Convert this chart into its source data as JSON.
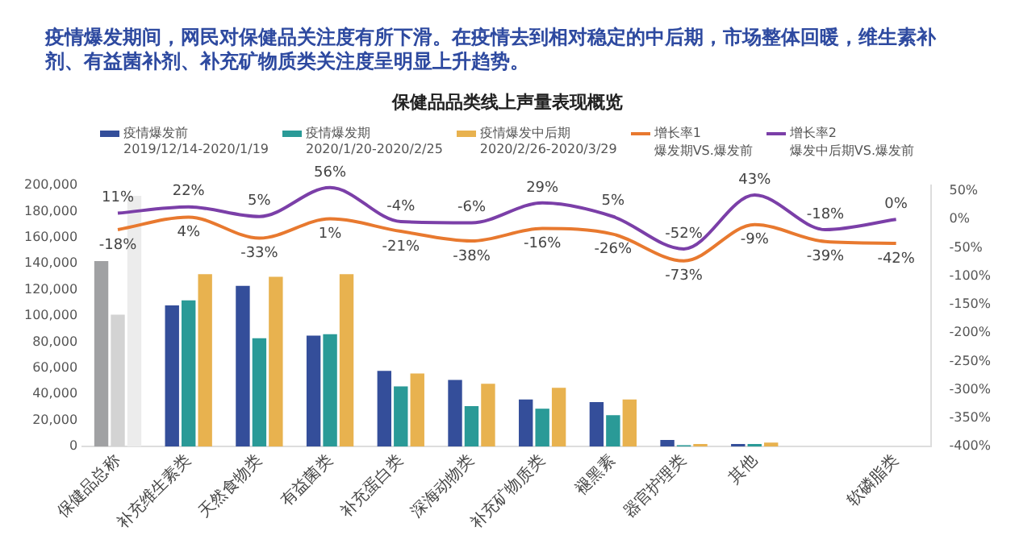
{
  "chart_data": {
    "type": "bar",
    "title": "疫情爆发期间，网民对保健品关注度有所下滑。在疫情去到相对稳定的中后期，市场整体回暖，维生素补剂、有益菌补剂、补充矿物质类关注度呈明显上升趋势。",
    "subtitle": "保健品品类线上声量表现概览",
    "categories": [
      "保健品总称",
      "补充维生素类",
      "天然食物类",
      "有益菌类",
      "补充蛋白类",
      "深海动物类",
      "补充矿物质类",
      "褪黑素",
      "器官护理类",
      "其他",
      null,
      "软磷脂类"
    ],
    "series": [
      {
        "name": "疫情爆发前\n2019/12/14-2020/1/19",
        "color": "#344e9a",
        "colors": [
          "#a0a1a3",
          "#344e9a",
          "#344e9a",
          "#344e9a",
          "#344e9a",
          "#344e9a",
          "#344e9a",
          "#344e9a",
          "#344e9a",
          "#344e9a",
          "#344e9a",
          "#344e9a"
        ],
        "values": [
          142000,
          108000,
          123000,
          85000,
          58000,
          51000,
          36000,
          34000,
          5000,
          2000,
          0,
          0
        ]
      },
      {
        "name": "疫情爆发期\n2020/1/20-2020/2/25",
        "color": "#2a9a97",
        "colors": [
          "#d3d3d3",
          "#2a9a97",
          "#2a9a97",
          "#2a9a97",
          "#2a9a97",
          "#2a9a97",
          "#2a9a97",
          "#2a9a97",
          "#2a9a97",
          "#2a9a97",
          "#2a9a97",
          "#2a9a97"
        ],
        "values": [
          101000,
          112000,
          83000,
          86000,
          46000,
          31000,
          29000,
          24000,
          1000,
          2000,
          0,
          0
        ]
      },
      {
        "name": "疫情爆发中后期\n2020/2/26-2020/3/29",
        "color": "#e8b24f",
        "colors": [
          "#ececec",
          "#e8b24f",
          "#e8b24f",
          "#e8b24f",
          "#e8b24f",
          "#e8b24f",
          "#e8b24f",
          "#e8b24f",
          "#e8b24f",
          "#e8b24f",
          "#e8b24f",
          "#e8b24f"
        ],
        "values": [
          192000,
          132000,
          130000,
          132000,
          56000,
          48000,
          45000,
          36000,
          2000,
          3000,
          0,
          0
        ]
      },
      {
        "name": "增长率1\n爆发期VS.爆发前",
        "type": "line",
        "axis": "y2",
        "color": "#e8792f",
        "values": [
          -18,
          4,
          -33,
          1,
          -21,
          -38,
          -16,
          -26,
          -73,
          -9,
          -39,
          -42
        ],
        "value_labels": [
          "-18%",
          "4%",
          "-33%",
          "1%",
          "-21%",
          "-38%",
          "-16%",
          "-26%",
          "-73%",
          "-9%",
          "-39%",
          "-42%"
        ]
      },
      {
        "name": "增长率2\n爆发中后期VS.爆发前",
        "type": "line",
        "axis": "y2",
        "color": "#7b3fa8",
        "values": [
          11,
          22,
          5,
          56,
          -4,
          -6,
          29,
          5,
          -52,
          43,
          -18,
          0
        ],
        "value_labels": [
          "11%",
          "22%",
          "5%",
          "56%",
          "-4%",
          "-6%",
          "29%",
          "5%",
          "-52%",
          "43%",
          "-18%",
          "0%"
        ]
      }
    ],
    "ylim": [
      0,
      200000
    ],
    "yticks": [
      {
        "value": 0,
        "label": "0"
      },
      {
        "value": 20000,
        "label": "20,000"
      },
      {
        "value": 40000,
        "label": "40,000"
      },
      {
        "value": 60000,
        "label": "60,000"
      },
      {
        "value": 80000,
        "label": "80,000"
      },
      {
        "value": 100000,
        "label": "100,000"
      },
      {
        "value": 120000,
        "label": "120,000"
      },
      {
        "value": 140000,
        "label": "140,000"
      },
      {
        "value": 160000,
        "label": "160,000"
      },
      {
        "value": 180000,
        "label": "180,000"
      },
      {
        "value": 200000,
        "label": "200,000"
      }
    ],
    "y2lim": [
      -400,
      60
    ],
    "y2ticks": [
      {
        "value": -400,
        "label": "-400%"
      },
      {
        "value": -350,
        "label": "-350%"
      },
      {
        "value": -300,
        "label": "-300%"
      },
      {
        "value": -250,
        "label": "-250%"
      },
      {
        "value": -200,
        "label": "-200%"
      },
      {
        "value": -150,
        "label": "-150%"
      },
      {
        "value": -100,
        "label": "-100%"
      },
      {
        "value": -50,
        "label": "-50%"
      },
      {
        "value": 0,
        "label": "0%"
      },
      {
        "value": 50,
        "label": "50%"
      }
    ],
    "grid": false,
    "legend": "top",
    "marker": "none",
    "line_style": "solid"
  }
}
